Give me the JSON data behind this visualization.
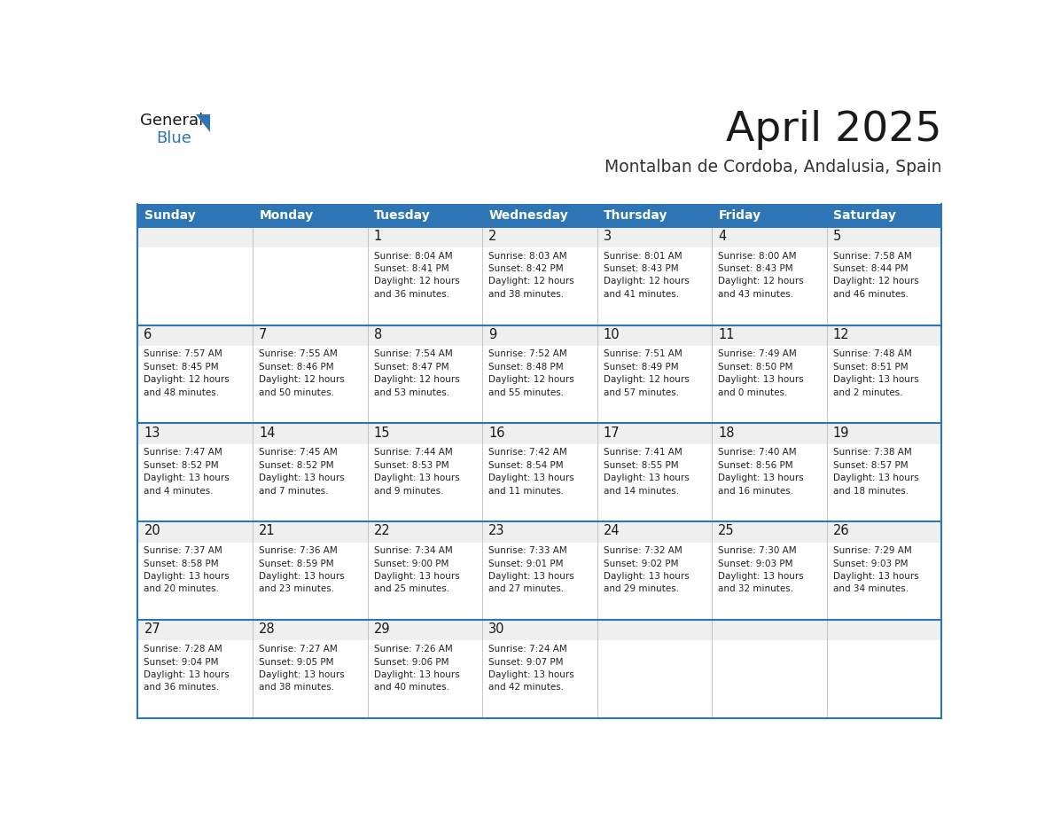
{
  "title": "April 2025",
  "subtitle": "Montalban de Cordoba, Andalusia, Spain",
  "header_bg_color": "#2E75B6",
  "header_text_color": "#FFFFFF",
  "cell_bg_color": "#FFFFFF",
  "row_top_bg_color": "#EFEFEF",
  "day_headers": [
    "Sunday",
    "Monday",
    "Tuesday",
    "Wednesday",
    "Thursday",
    "Friday",
    "Saturday"
  ],
  "title_color": "#1a1a1a",
  "subtitle_color": "#333333",
  "day_number_color": "#1a1a1a",
  "info_color": "#222222",
  "line_color": "#2E75B6",
  "logo_general_color": "#1a1a1a",
  "logo_blue_color": "#2E75B6",
  "logo_triangle_color": "#2E75B6",
  "calendar": [
    [
      {
        "day": 0,
        "info": ""
      },
      {
        "day": 0,
        "info": ""
      },
      {
        "day": 1,
        "info": "Sunrise: 8:04 AM\nSunset: 8:41 PM\nDaylight: 12 hours\nand 36 minutes."
      },
      {
        "day": 2,
        "info": "Sunrise: 8:03 AM\nSunset: 8:42 PM\nDaylight: 12 hours\nand 38 minutes."
      },
      {
        "day": 3,
        "info": "Sunrise: 8:01 AM\nSunset: 8:43 PM\nDaylight: 12 hours\nand 41 minutes."
      },
      {
        "day": 4,
        "info": "Sunrise: 8:00 AM\nSunset: 8:43 PM\nDaylight: 12 hours\nand 43 minutes."
      },
      {
        "day": 5,
        "info": "Sunrise: 7:58 AM\nSunset: 8:44 PM\nDaylight: 12 hours\nand 46 minutes."
      }
    ],
    [
      {
        "day": 6,
        "info": "Sunrise: 7:57 AM\nSunset: 8:45 PM\nDaylight: 12 hours\nand 48 minutes."
      },
      {
        "day": 7,
        "info": "Sunrise: 7:55 AM\nSunset: 8:46 PM\nDaylight: 12 hours\nand 50 minutes."
      },
      {
        "day": 8,
        "info": "Sunrise: 7:54 AM\nSunset: 8:47 PM\nDaylight: 12 hours\nand 53 minutes."
      },
      {
        "day": 9,
        "info": "Sunrise: 7:52 AM\nSunset: 8:48 PM\nDaylight: 12 hours\nand 55 minutes."
      },
      {
        "day": 10,
        "info": "Sunrise: 7:51 AM\nSunset: 8:49 PM\nDaylight: 12 hours\nand 57 minutes."
      },
      {
        "day": 11,
        "info": "Sunrise: 7:49 AM\nSunset: 8:50 PM\nDaylight: 13 hours\nand 0 minutes."
      },
      {
        "day": 12,
        "info": "Sunrise: 7:48 AM\nSunset: 8:51 PM\nDaylight: 13 hours\nand 2 minutes."
      }
    ],
    [
      {
        "day": 13,
        "info": "Sunrise: 7:47 AM\nSunset: 8:52 PM\nDaylight: 13 hours\nand 4 minutes."
      },
      {
        "day": 14,
        "info": "Sunrise: 7:45 AM\nSunset: 8:52 PM\nDaylight: 13 hours\nand 7 minutes."
      },
      {
        "day": 15,
        "info": "Sunrise: 7:44 AM\nSunset: 8:53 PM\nDaylight: 13 hours\nand 9 minutes."
      },
      {
        "day": 16,
        "info": "Sunrise: 7:42 AM\nSunset: 8:54 PM\nDaylight: 13 hours\nand 11 minutes."
      },
      {
        "day": 17,
        "info": "Sunrise: 7:41 AM\nSunset: 8:55 PM\nDaylight: 13 hours\nand 14 minutes."
      },
      {
        "day": 18,
        "info": "Sunrise: 7:40 AM\nSunset: 8:56 PM\nDaylight: 13 hours\nand 16 minutes."
      },
      {
        "day": 19,
        "info": "Sunrise: 7:38 AM\nSunset: 8:57 PM\nDaylight: 13 hours\nand 18 minutes."
      }
    ],
    [
      {
        "day": 20,
        "info": "Sunrise: 7:37 AM\nSunset: 8:58 PM\nDaylight: 13 hours\nand 20 minutes."
      },
      {
        "day": 21,
        "info": "Sunrise: 7:36 AM\nSunset: 8:59 PM\nDaylight: 13 hours\nand 23 minutes."
      },
      {
        "day": 22,
        "info": "Sunrise: 7:34 AM\nSunset: 9:00 PM\nDaylight: 13 hours\nand 25 minutes."
      },
      {
        "day": 23,
        "info": "Sunrise: 7:33 AM\nSunset: 9:01 PM\nDaylight: 13 hours\nand 27 minutes."
      },
      {
        "day": 24,
        "info": "Sunrise: 7:32 AM\nSunset: 9:02 PM\nDaylight: 13 hours\nand 29 minutes."
      },
      {
        "day": 25,
        "info": "Sunrise: 7:30 AM\nSunset: 9:03 PM\nDaylight: 13 hours\nand 32 minutes."
      },
      {
        "day": 26,
        "info": "Sunrise: 7:29 AM\nSunset: 9:03 PM\nDaylight: 13 hours\nand 34 minutes."
      }
    ],
    [
      {
        "day": 27,
        "info": "Sunrise: 7:28 AM\nSunset: 9:04 PM\nDaylight: 13 hours\nand 36 minutes."
      },
      {
        "day": 28,
        "info": "Sunrise: 7:27 AM\nSunset: 9:05 PM\nDaylight: 13 hours\nand 38 minutes."
      },
      {
        "day": 29,
        "info": "Sunrise: 7:26 AM\nSunset: 9:06 PM\nDaylight: 13 hours\nand 40 minutes."
      },
      {
        "day": 30,
        "info": "Sunrise: 7:24 AM\nSunset: 9:07 PM\nDaylight: 13 hours\nand 42 minutes."
      },
      {
        "day": 0,
        "info": ""
      },
      {
        "day": 0,
        "info": ""
      },
      {
        "day": 0,
        "info": ""
      }
    ]
  ]
}
